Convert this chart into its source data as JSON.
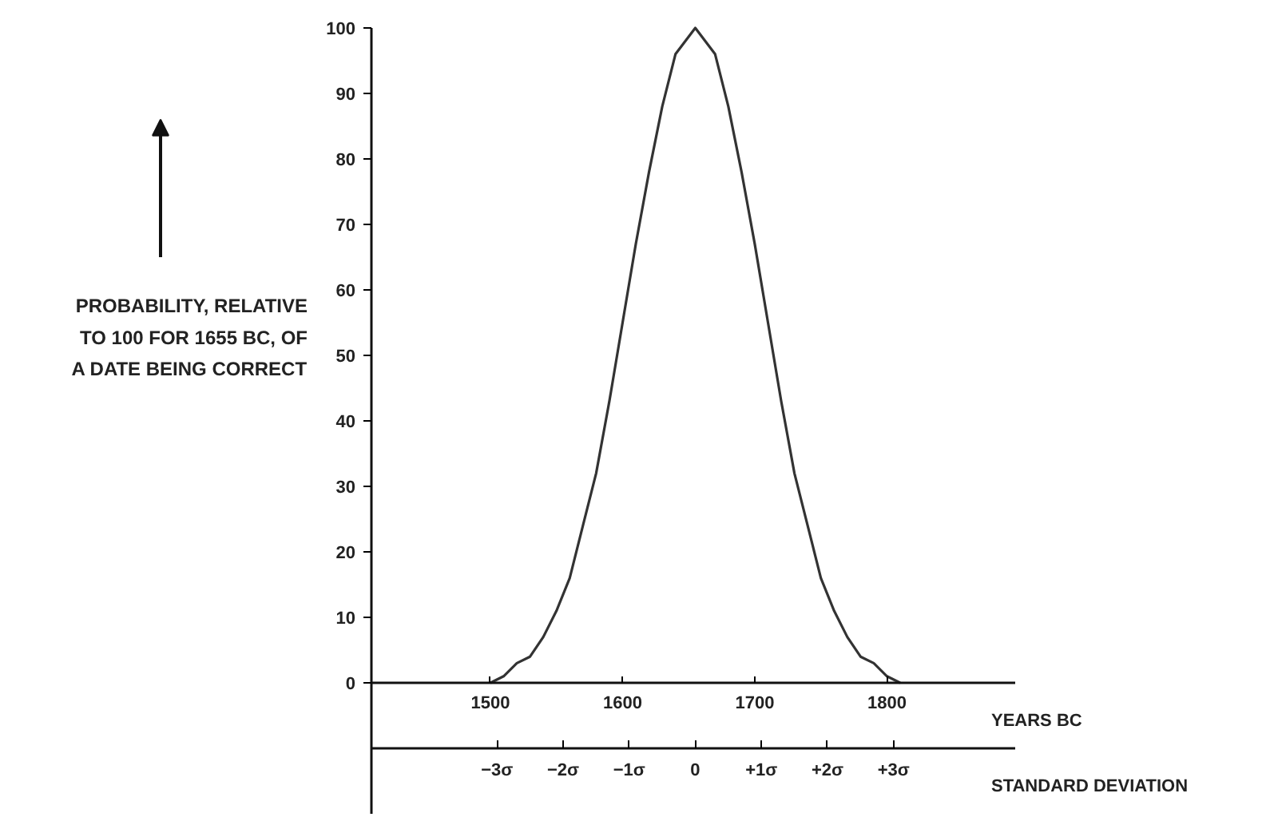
{
  "chart_data": {
    "type": "line",
    "xlabel": "YEARS BC",
    "x2label": "STANDARD DEVIATION",
    "ylabel": "PROBABILITY, RELATIVE TO 100 FOR 1655 BC, OF A DATE BEING CORRECT",
    "x": [
      1500,
      1510,
      1520,
      1530,
      1540,
      1550,
      1560,
      1570,
      1580,
      1590,
      1600,
      1610,
      1620,
      1630,
      1640,
      1655,
      1670,
      1680,
      1690,
      1700,
      1710,
      1720,
      1730,
      1740,
      1750,
      1760,
      1770,
      1780,
      1790,
      1800,
      1810
    ],
    "series": [
      {
        "color": "#333333",
        "values": [
          0,
          1,
          3,
          4,
          7,
          11,
          16,
          24,
          32,
          43,
          55,
          67,
          78,
          88,
          96,
          100,
          96,
          88,
          78,
          67,
          55,
          43,
          32,
          24,
          16,
          11,
          7,
          4,
          3,
          1,
          0
        ]
      }
    ],
    "xlim": [
      1410,
      1897
    ],
    "xticks": [
      1500,
      1600,
      1700,
      1800
    ],
    "x2lim": [
      -4.9,
      4.84
    ],
    "x2ticks": [
      {
        "value": -3,
        "label": "−3σ"
      },
      {
        "value": -2,
        "label": "−2σ"
      },
      {
        "value": -1,
        "label": "−1σ"
      },
      0,
      {
        "value": 1,
        "label": "+1σ"
      },
      {
        "value": 2,
        "label": "+2σ"
      },
      {
        "value": 3,
        "label": "+3σ"
      }
    ],
    "ylim": [
      0,
      100
    ],
    "yticks": [
      0,
      10,
      20,
      30,
      40,
      50,
      60,
      70,
      80,
      90,
      100
    ],
    "marker": "none",
    "line_style": "solid"
  }
}
